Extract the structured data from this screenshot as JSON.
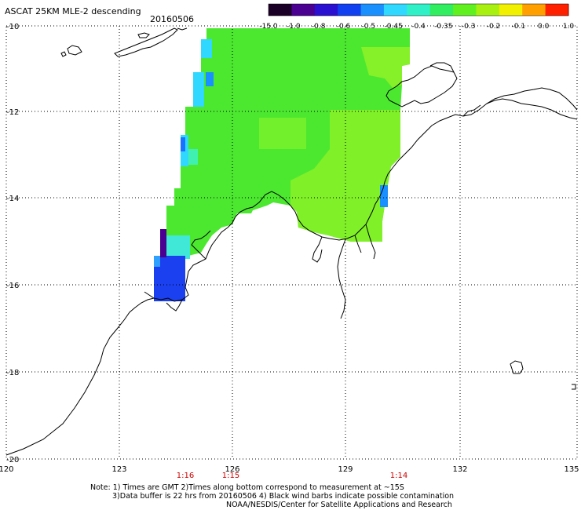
{
  "header": {
    "title": "ASCAT 25KM MLE-2 descending",
    "date": "20160506"
  },
  "colorbar": {
    "labels": [
      "-15.0",
      "-1.0",
      "-0.8",
      "-0.6",
      "-0.5",
      "-0.45",
      "-0.4",
      "-0.35",
      "-0.3",
      "-0.2",
      "-0.1",
      "0.0",
      "1.0"
    ],
    "colors": [
      "#1a0026",
      "#4a0090",
      "#2a10d0",
      "#1040f0",
      "#1a90ff",
      "#30d8ff",
      "#30f0c8",
      "#30ee60",
      "#60f020",
      "#a8f010",
      "#f0f000",
      "#ffa000",
      "#ff2000"
    ]
  },
  "axes": {
    "lon_labels": [
      "120",
      "123",
      "126",
      "129",
      "132",
      "135"
    ],
    "lat_labels": [
      "-10",
      "-12",
      "-14",
      "-16",
      "-18",
      "-20"
    ]
  },
  "times": [
    "1:16",
    "1:15",
    "1:14"
  ],
  "notes": [
    "Note: 1) Times are GMT 2)Times along bottom correspond to measurement at ~15S",
    "3)Data buffer is 22 hrs from 20160506 4) Black wind barbs indicate possible contamination",
    "NOAA/NESDIS/Center for Satellite Applications and Research"
  ],
  "colors": {
    "grid": "#000000",
    "coast": "#000000",
    "data_main": "#4ce830",
    "data_light": "#80f028",
    "data_cyan": "#30d8ff",
    "data_blue": "#1a40f0",
    "data_purple": "#4a0090",
    "time_text": "#cc0000"
  }
}
